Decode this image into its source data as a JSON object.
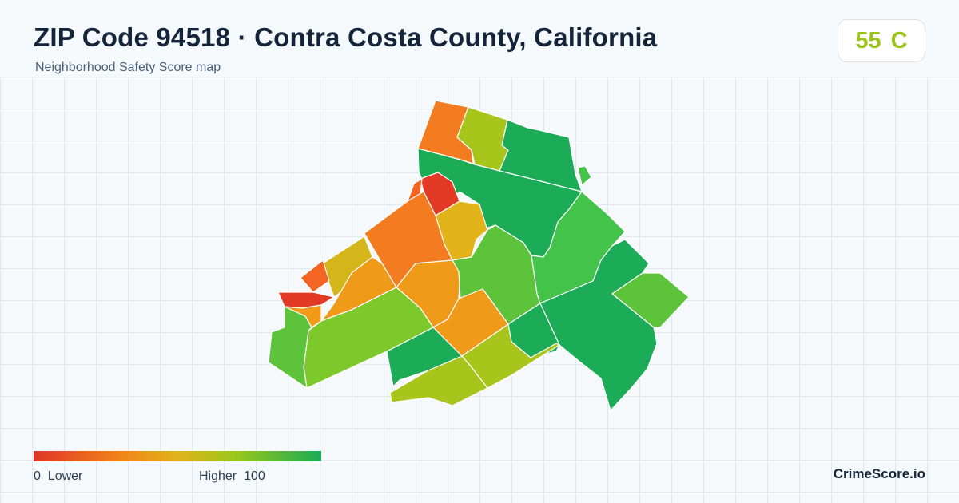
{
  "header": {
    "title": "ZIP Code 94518 · Contra Costa County, California",
    "subtitle": "Neighborhood Safety Score map"
  },
  "score": {
    "value": "55",
    "grade": "C",
    "color": "#9bc31c"
  },
  "legend": {
    "min": "0",
    "min_label": "Lower",
    "max_label": "Higher",
    "max": "100",
    "colors": [
      "#e03527",
      "#f0841c",
      "#e2b21a",
      "#9bc71b",
      "#1aab55"
    ]
  },
  "brand": "CrimeScore.io",
  "regions_palette": {
    "red": "#e23a24",
    "orange_red": "#f26522",
    "orange": "#f47c20",
    "amber": "#f09a1a",
    "yellow": "#e3b31a",
    "olive": "#d4b51a",
    "yellow_green": "#a8c51c",
    "lime": "#7dc92c",
    "light_green": "#5cc33b",
    "green": "#43c34a",
    "dark_green": "#1cab57"
  }
}
